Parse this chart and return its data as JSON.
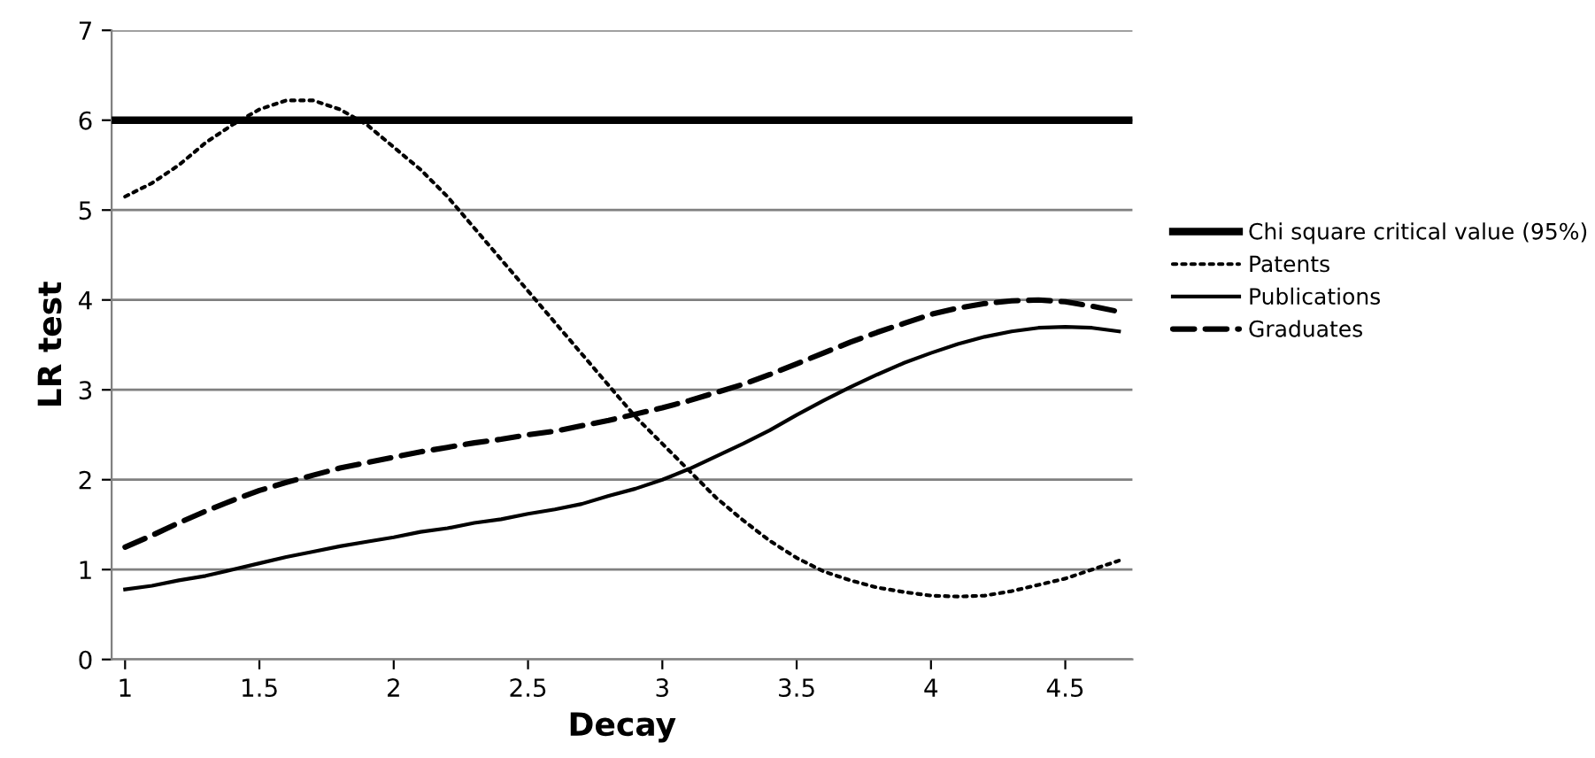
{
  "chart_data": {
    "type": "line",
    "xlabel": "Decay",
    "ylabel": "LR test",
    "x": [
      1.0,
      1.1,
      1.2,
      1.3,
      1.4,
      1.5,
      1.6,
      1.7,
      1.8,
      1.9,
      2.0,
      2.1,
      2.2,
      2.3,
      2.4,
      2.5,
      2.6,
      2.7,
      2.8,
      2.9,
      3.0,
      3.1,
      3.2,
      3.3,
      3.4,
      3.5,
      3.6,
      3.7,
      3.8,
      3.9,
      4.0,
      4.1,
      4.2,
      4.3,
      4.4,
      4.5,
      4.6,
      4.7
    ],
    "series": [
      {
        "name": "Patents",
        "color": "#000000",
        "line_style": "dotted",
        "values": [
          5.15,
          5.3,
          5.5,
          5.75,
          5.95,
          6.12,
          6.22,
          6.22,
          6.12,
          5.95,
          5.7,
          5.45,
          5.15,
          4.8,
          4.45,
          4.1,
          3.75,
          3.4,
          3.05,
          2.7,
          2.4,
          2.1,
          1.8,
          1.55,
          1.32,
          1.13,
          0.98,
          0.88,
          0.8,
          0.75,
          0.71,
          0.7,
          0.71,
          0.76,
          0.83,
          0.9,
          1.0,
          1.1
        ]
      },
      {
        "name": "Publications",
        "color": "#000000",
        "line_style": "solid",
        "values": [
          0.78,
          0.82,
          0.88,
          0.93,
          1.0,
          1.07,
          1.14,
          1.2,
          1.26,
          1.31,
          1.36,
          1.42,
          1.46,
          1.52,
          1.56,
          1.62,
          1.67,
          1.73,
          1.82,
          1.9,
          2.0,
          2.12,
          2.26,
          2.4,
          2.55,
          2.72,
          2.88,
          3.03,
          3.17,
          3.3,
          3.41,
          3.51,
          3.59,
          3.65,
          3.69,
          3.7,
          3.69,
          3.65
        ]
      },
      {
        "name": "Graduates",
        "color": "#000000",
        "line_style": "dashed",
        "values": [
          1.25,
          1.38,
          1.52,
          1.65,
          1.77,
          1.88,
          1.97,
          2.05,
          2.13,
          2.19,
          2.25,
          2.31,
          2.36,
          2.41,
          2.45,
          2.5,
          2.54,
          2.6,
          2.66,
          2.73,
          2.8,
          2.88,
          2.97,
          3.06,
          3.17,
          3.29,
          3.41,
          3.53,
          3.64,
          3.74,
          3.84,
          3.91,
          3.96,
          3.99,
          4.0,
          3.98,
          3.93,
          3.87
        ]
      }
    ],
    "ref_lines": [
      {
        "axis": "y",
        "value": 6,
        "label": "Chi square critical value (95%)",
        "color": "#000000",
        "line_style": "solid"
      }
    ],
    "xlim": [
      0.95,
      4.75
    ],
    "xticks": [
      1,
      1.5,
      2,
      2.5,
      3,
      3.5,
      4,
      4.5
    ],
    "ylim": [
      0,
      7
    ],
    "yticks": [
      0,
      1,
      2,
      3,
      4,
      5,
      6,
      7
    ],
    "grid": "y",
    "legend": "right"
  }
}
